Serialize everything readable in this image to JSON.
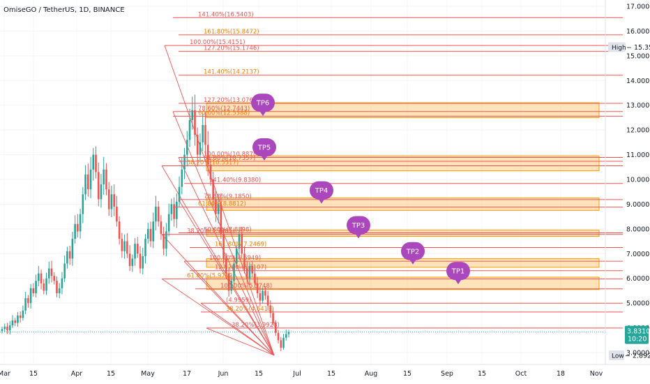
{
  "chart_data": {
    "type": "candlestick",
    "title": "OmiseGO / TetherUS, 1D, BINANCE",
    "y_ticks": [
      "17.0000",
      "16.0000",
      "15.0000",
      "14.0000",
      "13.0000",
      "12.0000",
      "11.0000",
      "10.0000",
      "9.0000",
      "8.0000",
      "7.0000",
      "6.0000",
      "5.0000",
      "4.0000",
      "3.0000"
    ],
    "x_ticks": [
      "Mar",
      "15",
      "Apr",
      "15",
      "May",
      "17",
      "Jun",
      "15",
      "Jul",
      "15",
      "Aug",
      "15",
      "Sep",
      "15",
      "Oct",
      "18",
      "Nov"
    ],
    "ylim": [
      2.5,
      17.3
    ],
    "high": {
      "label": "High",
      "value": "15.3500"
    },
    "low": {
      "label": "Low",
      "value": "2.8920"
    },
    "last_price": {
      "value": "3.8310",
      "countdown": "10:20"
    },
    "closes": [
      3.95,
      4.05,
      3.9,
      4.1,
      4.3,
      4.2,
      4.5,
      4.4,
      4.7,
      5.2,
      5.0,
      5.6,
      5.4,
      5.9,
      6.2,
      5.8,
      5.5,
      6.0,
      6.4,
      6.1,
      5.9,
      5.4,
      5.6,
      6.0,
      6.6,
      7.1,
      6.8,
      7.6,
      8.2,
      7.9,
      8.6,
      9.4,
      10.2,
      9.6,
      10.4,
      11.0,
      10.3,
      9.2,
      9.8,
      10.4,
      9.6,
      8.8,
      9.4,
      8.9,
      8.3,
      7.6,
      7.1,
      7.5,
      7.0,
      6.5,
      6.8,
      7.4,
      7.0,
      6.4,
      6.9,
      7.6,
      8.0,
      7.5,
      8.3,
      8.9,
      8.3,
      7.8,
      7.2,
      7.9,
      8.6,
      9.0,
      8.4,
      9.1,
      9.7,
      10.4,
      11.0,
      11.6,
      12.4,
      12.8,
      11.8,
      11.0,
      11.5,
      12.2,
      11.4,
      10.6,
      10.0,
      9.2,
      8.6,
      9.0,
      7.8,
      6.8,
      6.2,
      5.5,
      5.9,
      6.6,
      7.2,
      7.8,
      7.0,
      6.4,
      6.0,
      6.5,
      6.2,
      5.8,
      5.4,
      5.1,
      5.5,
      5.3,
      4.9,
      4.6,
      4.2,
      3.8,
      3.5,
      3.2,
      3.6,
      3.75,
      3.83
    ],
    "fib_lines": [
      {
        "label": "141.40%(16.5403)",
        "y": 16.5403,
        "x0": 248
      },
      {
        "label": "161.80%(15.8472)",
        "y": 15.8472,
        "x0": 256
      },
      {
        "label": "100.00%(15.4151)",
        "y": 15.4151,
        "x0": 236
      },
      {
        "label": "127.20%(15.1746)",
        "y": 15.1746,
        "x0": 256
      },
      {
        "label": "141.40%(14.2137)",
        "y": 14.2137,
        "x0": 256
      },
      {
        "label": "127.20%(13.0766)",
        "y": 13.0766,
        "x0": 256
      },
      {
        "label": "78.60%(12.7443)",
        "y": 12.7443,
        "x0": 248
      },
      {
        "label": "60.00%(12.5588)",
        "y": 12.5588,
        "x0": 248
      },
      {
        "label": "100.00%(10.8878)",
        "y": 10.8878,
        "x0": 256
      },
      {
        "label": "61.80%(10.7357)",
        "y": 10.7357,
        "x0": 256
      },
      {
        "label": "38.20%(10.5517)",
        "y": 10.5517,
        "x0": 232
      },
      {
        "label": "141.40%(9.8380)",
        "y": 9.838,
        "x0": 264
      },
      {
        "label": "78.60%(9.1850)",
        "y": 9.185,
        "x0": 256
      },
      {
        "label": "61.80%(8.8812)",
        "y": 8.8812,
        "x0": 248
      },
      {
        "label": "50.00%(7.8398)",
        "y": 7.8398,
        "x0": 256
      },
      {
        "label": "38.20%(7.7785)",
        "y": 7.7785,
        "x0": 232
      },
      {
        "label": "161.80%(7.2469)",
        "y": 7.2469,
        "x0": 272
      },
      {
        "label": "100.00%(6.6949)",
        "y": 6.6949,
        "x0": 264
      },
      {
        "label": "127.20%(6.3107)",
        "y": 6.3107,
        "x0": 272
      },
      {
        "label": "61.80%(5.9762)",
        "y": 5.9762,
        "x0": 232
      },
      {
        "label": "100.00%(5.5748)",
        "y": 5.5748,
        "x0": 280
      },
      {
        "label": "(4.9959)",
        "y": 4.9959,
        "x0": 288
      },
      {
        "label": "38.20%(4.6413)",
        "y": 4.6413,
        "x0": 288
      },
      {
        "label": "38.20%(3.9928)",
        "y": 3.9928,
        "x0": 296
      }
    ],
    "tp_zones": [
      {
        "label": "TP6",
        "top": 13.1,
        "bottom": 12.5
      },
      {
        "label": "TP5",
        "top": 10.95,
        "bottom": 10.35
      },
      {
        "label": "TP4",
        "top": 9.25,
        "bottom": 8.75
      },
      {
        "label": "TP3",
        "top": 7.95,
        "bottom": 7.7
      },
      {
        "label": "TP2",
        "top": 6.8,
        "bottom": 6.45
      },
      {
        "label": "TP1",
        "top": 6.05,
        "bottom": 5.55
      }
    ],
    "tp_bubbles": [
      {
        "label": "TP6",
        "x": 377,
        "price": 13.1
      },
      {
        "label": "TP5",
        "x": 379,
        "price": 11.3
      },
      {
        "label": "TP4",
        "x": 461,
        "price": 9.56
      },
      {
        "label": "TP3",
        "x": 514,
        "price": 8.15
      },
      {
        "label": "TP2",
        "x": 592,
        "price": 7.1
      },
      {
        "label": "TP1",
        "x": 657,
        "price": 6.3
      }
    ]
  }
}
